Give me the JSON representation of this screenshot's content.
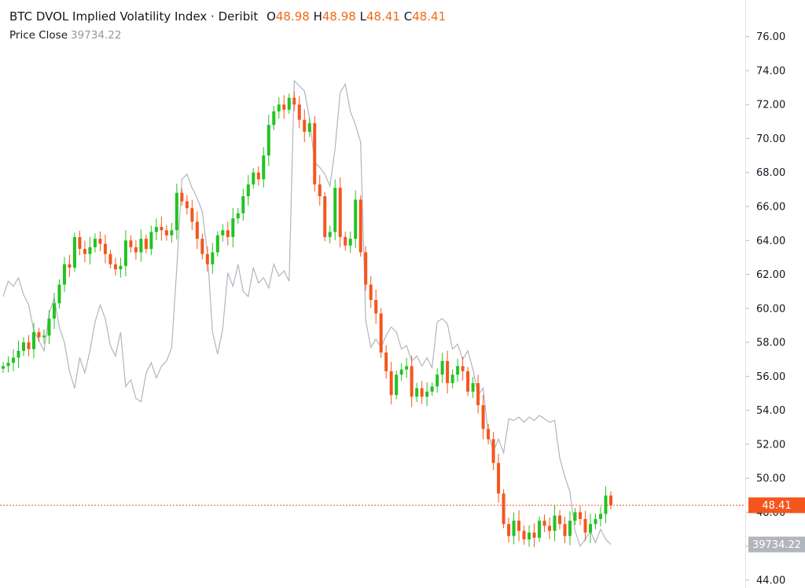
{
  "legend": {
    "title": "BTC DVOL Implied Volatility Index · Deribit",
    "open_label": "O",
    "open": "48.98",
    "high_label": "H",
    "high": "48.98",
    "low_label": "L",
    "low": "48.41",
    "close_label": "C",
    "close": "48.41",
    "series_name": "Price Close",
    "series_value": "39734.22"
  },
  "colors": {
    "up": "#22c322",
    "down": "#f4561e",
    "price_line": "#b2b5be",
    "last_price_badge": "#f4561e",
    "price_badge": "#b2b5be",
    "axis_text": "#131722"
  },
  "chart_data": {
    "type": "candlestick",
    "title": "BTC DVOL Implied Volatility Index · Deribit",
    "y_axis_position": "right",
    "ylim": [
      44,
      77
    ],
    "y_ticks": [
      "76.00",
      "74.00",
      "72.00",
      "70.00",
      "68.00",
      "66.00",
      "64.00",
      "62.00",
      "60.00",
      "58.00",
      "56.00",
      "54.00",
      "52.00",
      "50.00",
      "48.00",
      "46.00",
      "44.00"
    ],
    "last_price_label": "48.41",
    "last_price": 48.41,
    "overlay_label": "39734.22",
    "overlay_level": 46.1,
    "dvol_close": [
      56.6,
      56.8,
      57.1,
      57.5,
      58.0,
      57.6,
      58.6,
      58.3,
      58.4,
      59.4,
      60.3,
      61.4,
      62.6,
      62.4,
      64.2,
      63.5,
      63.2,
      63.6,
      64.1,
      63.8,
      63.2,
      62.6,
      62.3,
      62.5,
      64.0,
      63.6,
      63.3,
      64.1,
      63.5,
      64.5,
      64.8,
      64.6,
      64.3,
      64.6,
      66.8,
      66.3,
      65.9,
      65.1,
      64.1,
      63.2,
      62.6,
      63.3,
      64.3,
      64.6,
      64.2,
      65.3,
      65.6,
      66.6,
      67.3,
      68.0,
      67.6,
      69.0,
      70.8,
      71.6,
      72.0,
      71.7,
      72.4,
      72.0,
      71.1,
      70.4,
      70.9,
      67.3,
      66.6,
      64.2,
      64.5,
      67.1,
      64.2,
      63.7,
      64.1,
      66.4,
      63.3,
      61.4,
      60.5,
      59.7,
      57.4,
      56.3,
      54.9,
      56.1,
      56.4,
      56.6,
      54.8,
      55.3,
      54.8,
      55.1,
      55.4,
      56.1,
      56.9,
      55.6,
      56.1,
      56.6,
      56.3,
      55.1,
      55.6,
      54.3,
      52.9,
      52.3,
      50.9,
      49.1,
      47.3,
      46.6,
      47.5,
      46.9,
      46.4,
      46.8,
      46.5,
      47.5,
      47.2,
      46.9,
      47.8,
      47.3,
      46.6,
      47.5,
      48.0,
      47.6,
      46.8,
      47.3,
      47.6,
      47.9,
      48.98,
      48.41
    ],
    "btc_price_close": [
      60.7,
      61.6,
      61.3,
      61.8,
      60.8,
      60.2,
      58.7,
      58.1,
      57.5,
      59.7,
      60.6,
      58.9,
      58.0,
      56.3,
      55.3,
      57.1,
      56.2,
      57.5,
      59.2,
      60.2,
      59.4,
      57.8,
      57.2,
      58.6,
      55.4,
      55.8,
      54.7,
      54.5,
      56.2,
      56.8,
      55.9,
      56.6,
      56.9,
      57.7,
      62.4,
      67.6,
      67.9,
      67.1,
      66.5,
      65.7,
      63.3,
      58.6,
      57.3,
      58.8,
      62.1,
      61.3,
      62.6,
      61.0,
      60.7,
      62.4,
      61.5,
      61.8,
      61.2,
      62.6,
      61.9,
      62.2,
      61.6,
      73.4,
      73.1,
      72.8,
      71.2,
      68.6,
      68.3,
      67.9,
      67.2,
      69.4,
      72.7,
      73.2,
      71.6,
      70.8,
      69.8,
      59.3,
      57.7,
      58.2,
      57.7,
      58.4,
      58.9,
      58.6,
      57.6,
      57.8,
      56.9,
      57.2,
      56.6,
      57.1,
      56.5,
      59.2,
      59.4,
      59.1,
      57.6,
      57.9,
      57.0,
      57.5,
      56.4,
      54.9,
      55.3,
      52.6,
      51.6,
      52.3,
      51.5,
      53.5,
      53.4,
      53.6,
      53.3,
      53.6,
      53.4,
      53.7,
      53.5,
      53.3,
      53.4,
      51.2,
      50.1,
      49.2,
      46.9,
      46.0,
      46.4,
      46.9,
      46.2,
      47.0,
      46.4,
      46.1
    ]
  }
}
